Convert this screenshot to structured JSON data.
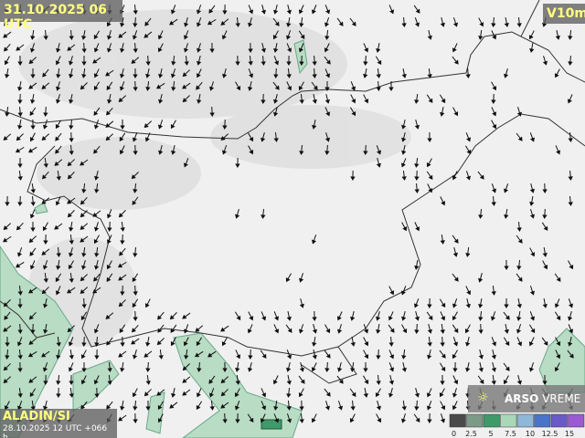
{
  "header": {
    "valid_time": "31.10.2025 06 UTC",
    "parameter": "V10m"
  },
  "footer": {
    "model": "ALADIN/SI",
    "run": "28.10.2025 12 UTC +066 h"
  },
  "logo": {
    "brand": "ARSO",
    "product": "VREME"
  },
  "legend": {
    "ticks": [
      0,
      2.5,
      5,
      7.5,
      10,
      12.5,
      15
    ],
    "colors": [
      "#4a4a4a",
      "#7c9a88",
      "#3f9a6a",
      "#a8d8b8",
      "#8fb8d8",
      "#4a74c8",
      "#6a5ac8",
      "#9a5ad0"
    ]
  }
}
